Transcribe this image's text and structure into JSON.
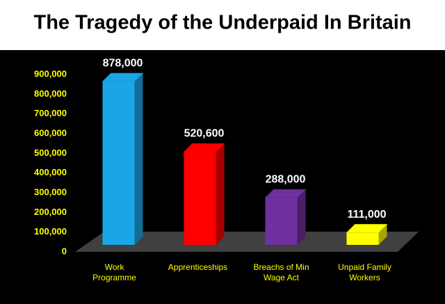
{
  "chart_data": {
    "type": "bar3d",
    "title": "The Tragedy of the Underpaid In Britain",
    "categories": [
      "Work Programme",
      "Apprenticeships",
      "Breachs of Min Wage Act",
      "Unpaid Family Workers"
    ],
    "values": [
      878000,
      520600,
      288000,
      111000
    ],
    "value_labels": [
      "878,000",
      "520,600",
      "288,000",
      "111,000"
    ],
    "colors": [
      "#1aa6e6",
      "#ff0000",
      "#7030a0",
      "#ffff00"
    ],
    "ylim": [
      0,
      900000
    ],
    "yticks": [
      0,
      {
        "value": 100000,
        "label": "100,000"
      },
      {
        "value": 200000,
        "label": "200,000"
      },
      {
        "value": 300000,
        "label": "300,000"
      },
      {
        "value": 400000,
        "label": "400,000"
      },
      {
        "value": 500000,
        "label": "500,000"
      },
      {
        "value": 600000,
        "label": "600,000"
      },
      {
        "value": 700000,
        "label": "700,000"
      },
      {
        "value": 800000,
        "label": "800,000"
      },
      {
        "value": 900000,
        "label": "900,000"
      }
    ]
  }
}
